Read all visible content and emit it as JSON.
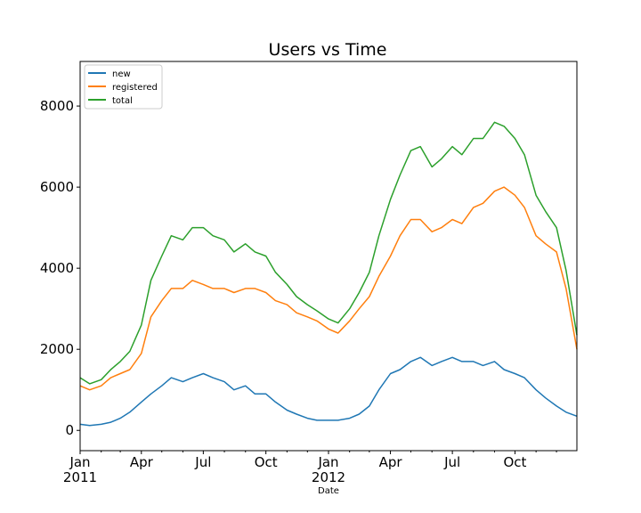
{
  "chart_data": {
    "type": "line",
    "title": "Users vs Time",
    "xlabel": "Date",
    "ylabel": "",
    "xlim": [
      "2011-01-01",
      "2012-12-31"
    ],
    "ylim": [
      -500,
      9100
    ],
    "yticks": [
      0,
      2000,
      4000,
      6000,
      8000
    ],
    "xticks": [
      {
        "date": "2011-01-01",
        "label": "Jan",
        "sublabel": "2011"
      },
      {
        "date": "2011-04-01",
        "label": "Apr",
        "sublabel": ""
      },
      {
        "date": "2011-07-01",
        "label": "Jul",
        "sublabel": ""
      },
      {
        "date": "2011-10-01",
        "label": "Oct",
        "sublabel": ""
      },
      {
        "date": "2012-01-01",
        "label": "Jan",
        "sublabel": "2012"
      },
      {
        "date": "2012-04-01",
        "label": "Apr",
        "sublabel": ""
      },
      {
        "date": "2012-07-01",
        "label": "Jul",
        "sublabel": ""
      },
      {
        "date": "2012-10-01",
        "label": "Oct",
        "sublabel": ""
      }
    ],
    "legend_position": "top-left",
    "grid": false,
    "x": [
      "2011-01-01",
      "2011-01-15",
      "2011-02-01",
      "2011-02-15",
      "2011-03-01",
      "2011-03-15",
      "2011-04-01",
      "2011-04-15",
      "2011-05-01",
      "2011-05-15",
      "2011-06-01",
      "2011-06-15",
      "2011-07-01",
      "2011-07-15",
      "2011-08-01",
      "2011-08-15",
      "2011-09-01",
      "2011-09-15",
      "2011-10-01",
      "2011-10-15",
      "2011-11-01",
      "2011-11-15",
      "2011-12-01",
      "2011-12-15",
      "2012-01-01",
      "2012-01-15",
      "2012-02-01",
      "2012-02-15",
      "2012-03-01",
      "2012-03-15",
      "2012-04-01",
      "2012-04-15",
      "2012-05-01",
      "2012-05-15",
      "2012-06-01",
      "2012-06-15",
      "2012-07-01",
      "2012-07-15",
      "2012-08-01",
      "2012-08-15",
      "2012-09-01",
      "2012-09-15",
      "2012-10-01",
      "2012-10-15",
      "2012-11-01",
      "2012-11-15",
      "2012-12-01",
      "2012-12-15",
      "2012-12-31"
    ],
    "series": [
      {
        "name": "new",
        "color": "#1f77b4",
        "values": [
          150,
          120,
          150,
          200,
          300,
          450,
          700,
          900,
          1100,
          1300,
          1200,
          1300,
          1400,
          1300,
          1200,
          1000,
          1100,
          900,
          900,
          700,
          500,
          400,
          300,
          250,
          250,
          250,
          300,
          400,
          600,
          1000,
          1400,
          1500,
          1700,
          1800,
          1600,
          1700,
          1800,
          1700,
          1700,
          1600,
          1700,
          1500,
          1400,
          1300,
          1000,
          800,
          600,
          450,
          350
        ]
      },
      {
        "name": "registered",
        "color": "#ff7f0e",
        "values": [
          1100,
          1000,
          1100,
          1300,
          1400,
          1500,
          1900,
          2800,
          3200,
          3500,
          3500,
          3700,
          3600,
          3500,
          3500,
          3400,
          3500,
          3500,
          3400,
          3200,
          3100,
          2900,
          2800,
          2700,
          2500,
          2400,
          2700,
          3000,
          3300,
          3800,
          4300,
          4800,
          5200,
          5200,
          4900,
          5000,
          5200,
          5100,
          5500,
          5600,
          5900,
          6000,
          5800,
          5500,
          4800,
          4600,
          4400,
          3500,
          2000
        ]
      },
      {
        "name": "total",
        "color": "#2ca02c",
        "values": [
          1300,
          1150,
          1250,
          1500,
          1700,
          1950,
          2600,
          3700,
          4300,
          4800,
          4700,
          5000,
          5000,
          4800,
          4700,
          4400,
          4600,
          4400,
          4300,
          3900,
          3600,
          3300,
          3100,
          2950,
          2750,
          2650,
          3000,
          3400,
          3900,
          4800,
          5700,
          6300,
          6900,
          7000,
          6500,
          6700,
          7000,
          6800,
          7200,
          7200,
          7600,
          7500,
          7200,
          6800,
          5800,
          5400,
          5000,
          3950,
          2350
        ]
      }
    ]
  }
}
